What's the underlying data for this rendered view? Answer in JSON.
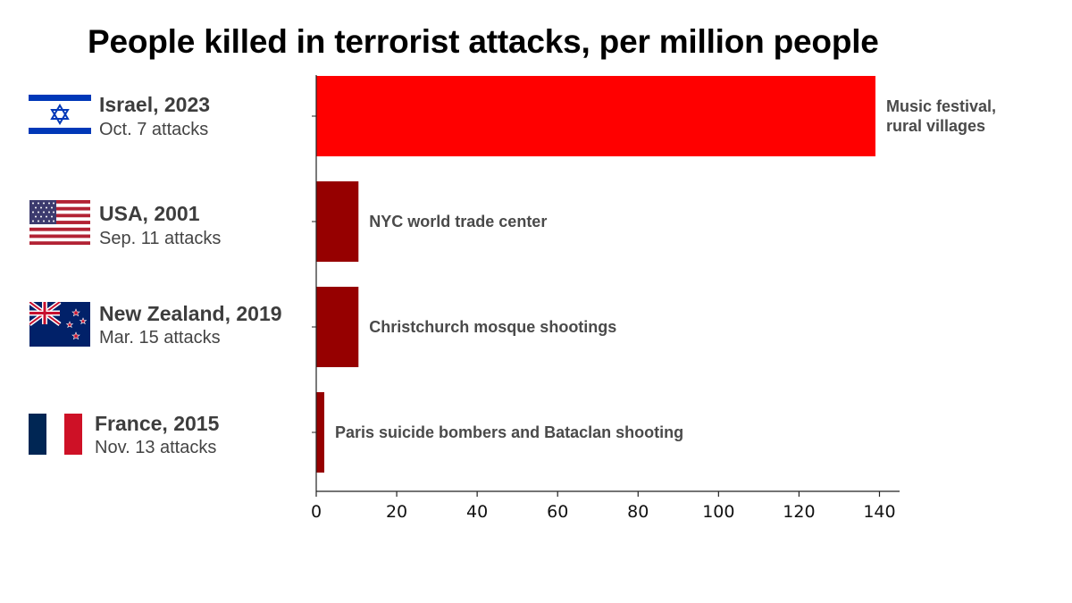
{
  "title": "People killed in terrorist attacks, per million people",
  "rows": [
    {
      "country": "Israel, 2023",
      "event": "Oct. 7 attacks",
      "flag": "israel-flag",
      "annotation": [
        "Music festival,",
        "rural villages"
      ]
    },
    {
      "country": "USA, 2001",
      "event": "Sep. 11 attacks",
      "flag": "usa-flag",
      "annotation": [
        "NYC world trade center"
      ]
    },
    {
      "country": "New Zealand, 2019",
      "event": "Mar. 15 attacks",
      "flag": "new-zealand-flag",
      "annotation": [
        "Christchurch mosque shootings"
      ]
    },
    {
      "country": "France, 2015",
      "event": "Nov. 13 attacks",
      "flag": "france-flag",
      "annotation": [
        "Paris suicide bombers and Bataclan shooting"
      ]
    }
  ],
  "chart_data": {
    "type": "bar",
    "orientation": "horizontal",
    "title": "People killed in terrorist attacks, per million people",
    "categories": [
      "Israel, 2023",
      "USA, 2001",
      "New Zealand, 2019",
      "France, 2015"
    ],
    "values": [
      139,
      10.5,
      10.5,
      2
    ],
    "bar_colors": [
      "#ff0000",
      "#960000",
      "#960000",
      "#960000"
    ],
    "xlim": [
      0,
      145
    ],
    "xticks": [
      0,
      20,
      40,
      60,
      80,
      100,
      120,
      140
    ],
    "xlabel": "",
    "ylabel": "",
    "grid": false
  },
  "colors": {
    "israel_blue": "#0038b8",
    "usa_red": "#b22234",
    "usa_blue": "#3c3b6e",
    "nz_blue": "#012169",
    "nz_red": "#c8102e",
    "france_blue": "#002654",
    "france_red": "#ce1126"
  }
}
